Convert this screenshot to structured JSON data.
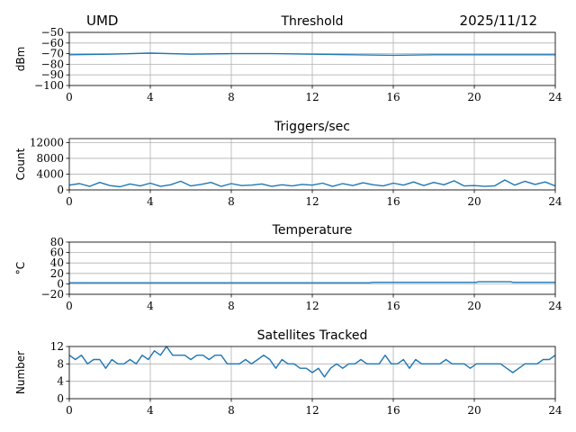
{
  "header": {
    "site": "UMD",
    "date": "2025/11/12"
  },
  "colors": {
    "series": "#1f77b4",
    "grid": "#b0b0b0"
  },
  "chart_data": [
    {
      "type": "line",
      "title": "Threshold",
      "xlabel": "",
      "ylabel": "dBm",
      "xlim": [
        0,
        24
      ],
      "ylim": [
        -100,
        -50
      ],
      "xticks": [
        0,
        4,
        8,
        12,
        16,
        20,
        24
      ],
      "yticks": [
        -100,
        -90,
        -80,
        -70,
        -60,
        -50
      ],
      "yticklabels": [
        "−100",
        "−90",
        "−80",
        "−70",
        "−60",
        "−50"
      ],
      "grid": true,
      "series": [
        {
          "x": [
            0,
            2,
            4,
            6,
            8,
            10,
            12,
            14,
            16,
            18,
            20,
            22,
            24
          ],
          "y": [
            -71,
            -70.5,
            -69.5,
            -70.5,
            -70,
            -70,
            -70.5,
            -71,
            -71.5,
            -71,
            -71,
            -71,
            -71
          ]
        }
      ]
    },
    {
      "type": "line",
      "title": "Triggers/sec",
      "xlabel": "",
      "ylabel": "Count",
      "xlim": [
        0,
        24
      ],
      "ylim": [
        0,
        13000
      ],
      "xticks": [
        0,
        4,
        8,
        12,
        16,
        20,
        24
      ],
      "yticks": [
        0,
        4000,
        8000,
        12000
      ],
      "yticklabels": [
        "0",
        "4000",
        "8000",
        "12000"
      ],
      "grid": true,
      "series": [
        {
          "x": [
            0,
            0.5,
            1,
            1.5,
            2,
            2.5,
            3,
            3.5,
            4,
            4.5,
            5,
            5.5,
            6,
            6.5,
            7,
            7.5,
            8,
            8.5,
            9,
            9.5,
            10,
            10.5,
            11,
            11.5,
            12,
            12.5,
            13,
            13.5,
            14,
            14.5,
            15,
            15.5,
            16,
            16.5,
            17,
            17.5,
            18,
            18.5,
            19,
            19.5,
            20,
            20.5,
            21,
            21.5,
            22,
            22.5,
            23,
            23.5,
            24
          ],
          "y": [
            1200,
            1600,
            900,
            1900,
            1100,
            800,
            1500,
            1000,
            1700,
            900,
            1300,
            2200,
            1000,
            1400,
            1900,
            900,
            1600,
            1100,
            1200,
            1500,
            900,
            1300,
            1000,
            1400,
            1200,
            1700,
            900,
            1600,
            1100,
            1800,
            1300,
            1000,
            1700,
            1200,
            2000,
            1100,
            1900,
            1300,
            2300,
            1000,
            1100,
            900,
            1000,
            2500,
            1200,
            2200,
            1400,
            2000,
            1000
          ]
        }
      ]
    },
    {
      "type": "line",
      "title": "Temperature",
      "xlabel": "",
      "ylabel": "°C",
      "xlim": [
        0,
        24
      ],
      "ylim": [
        -20,
        80
      ],
      "xticks": [
        0,
        4,
        8,
        12,
        16,
        20,
        24
      ],
      "yticks": [
        -20,
        0,
        20,
        40,
        60,
        80
      ],
      "yticklabels": [
        "−20",
        "0",
        "20",
        "40",
        "60",
        "80"
      ],
      "grid": true,
      "series": [
        {
          "x": [
            0,
            4,
            8,
            12,
            14.8,
            15,
            18,
            20.1,
            20.2,
            21.8,
            21.9,
            24
          ],
          "y": [
            2,
            2,
            2,
            2,
            2,
            3,
            3,
            3,
            4,
            4,
            3,
            3
          ]
        }
      ]
    },
    {
      "type": "line",
      "title": "Satellites Tracked",
      "xlabel": "",
      "ylabel": "Number",
      "xlim": [
        0,
        24
      ],
      "ylim": [
        0,
        12
      ],
      "xticks": [
        0,
        4,
        8,
        12,
        16,
        20,
        24
      ],
      "yticks": [
        0,
        4,
        8,
        12
      ],
      "yticklabels": [
        "0",
        "4",
        "8",
        "12"
      ],
      "grid": true,
      "series": [
        {
          "x": [
            0,
            0.3,
            0.6,
            0.9,
            1.2,
            1.5,
            1.8,
            2.1,
            2.4,
            2.7,
            3.0,
            3.3,
            3.6,
            3.9,
            4.2,
            4.5,
            4.8,
            5.1,
            5.4,
            5.7,
            6.0,
            6.3,
            6.6,
            6.9,
            7.2,
            7.5,
            7.8,
            8.1,
            8.4,
            8.7,
            9.0,
            9.3,
            9.6,
            9.9,
            10.2,
            10.5,
            10.8,
            11.1,
            11.4,
            11.7,
            12.0,
            12.3,
            12.6,
            12.9,
            13.2,
            13.5,
            13.8,
            14.1,
            14.4,
            14.7,
            15.0,
            15.3,
            15.6,
            15.9,
            16.2,
            16.5,
            16.8,
            17.1,
            17.4,
            17.7,
            18.0,
            18.3,
            18.6,
            18.9,
            19.2,
            19.5,
            19.8,
            20.1,
            20.4,
            20.7,
            21.0,
            21.3,
            21.6,
            21.9,
            22.2,
            22.5,
            22.8,
            23.1,
            23.4,
            23.7,
            24
          ],
          "y": [
            10,
            9,
            10,
            8,
            9,
            9,
            7,
            9,
            8,
            8,
            9,
            8,
            10,
            9,
            11,
            10,
            12,
            10,
            10,
            10,
            9,
            10,
            10,
            9,
            10,
            10,
            8,
            8,
            8,
            9,
            8,
            9,
            10,
            9,
            7,
            9,
            8,
            8,
            7,
            7,
            6,
            7,
            5,
            7,
            8,
            7,
            8,
            8,
            9,
            8,
            8,
            8,
            10,
            8,
            8,
            9,
            7,
            9,
            8,
            8,
            8,
            8,
            9,
            8,
            8,
            8,
            7,
            8,
            8,
            8,
            8,
            8,
            7,
            6,
            7,
            8,
            8,
            8,
            9,
            9,
            10
          ]
        }
      ]
    }
  ]
}
